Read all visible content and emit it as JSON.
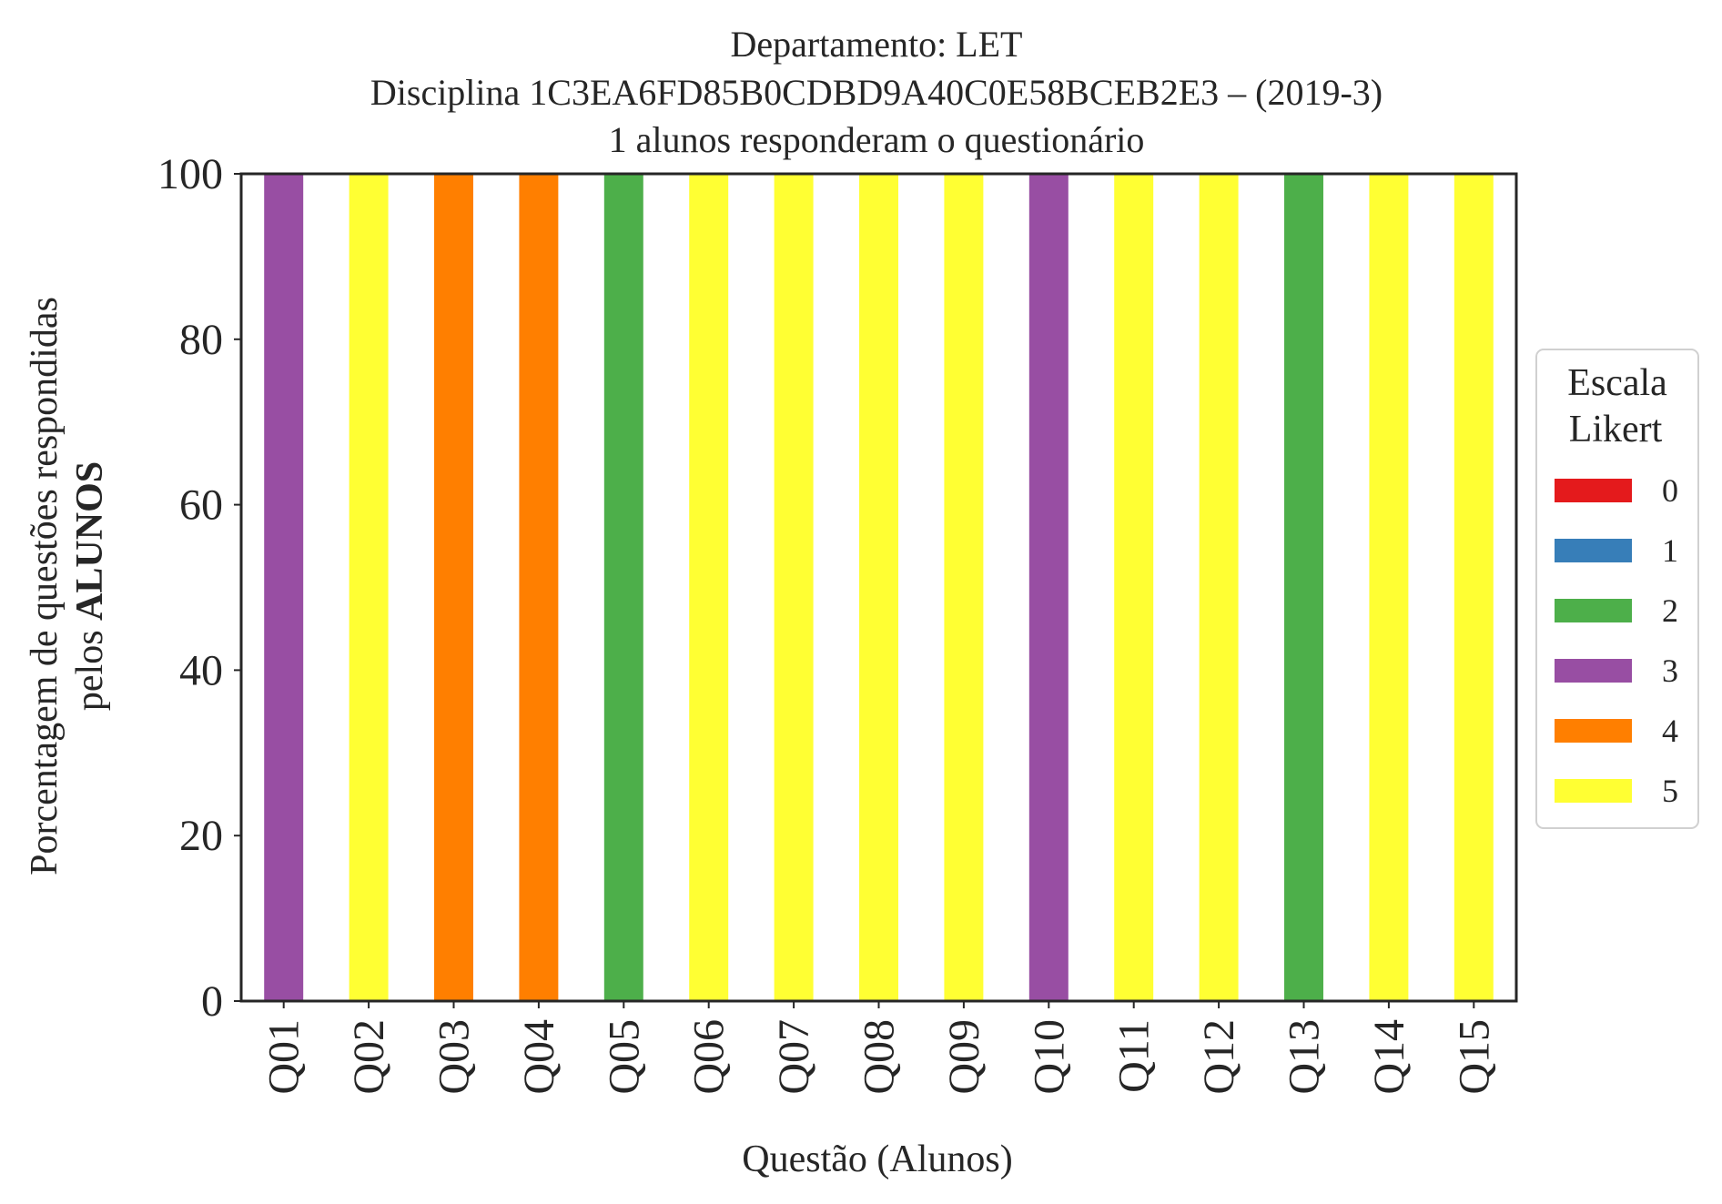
{
  "chart_data": {
    "type": "bar",
    "stacked": true,
    "title_lines": [
      "Departamento: LET",
      "Disciplina 1C3EA6FD85B0CDBD9A40C0E58BCEB2E3 – (2019-3)",
      "1 alunos responderam o questionário"
    ],
    "xlabel": "Questão (Alunos)",
    "ylabel_line1": "Porcentagem de questões respondidas",
    "ylabel_line2_prefix": "pelos ",
    "ylabel_line2_bold": "ALUNOS",
    "ylim": [
      0,
      100
    ],
    "yticks": [
      "0",
      "20",
      "40",
      "60",
      "80",
      "100"
    ],
    "categories": [
      "Q01",
      "Q02",
      "Q03",
      "Q04",
      "Q05",
      "Q06",
      "Q07",
      "Q08",
      "Q09",
      "Q10",
      "Q11",
      "Q12",
      "Q13",
      "Q14",
      "Q15"
    ],
    "series": [
      {
        "name": "0",
        "color": "#e41a1c",
        "values": [
          0,
          0,
          0,
          0,
          0,
          0,
          0,
          0,
          0,
          0,
          0,
          0,
          0,
          0,
          0
        ]
      },
      {
        "name": "1",
        "color": "#377eb8",
        "values": [
          0,
          0,
          0,
          0,
          0,
          0,
          0,
          0,
          0,
          0,
          0,
          0,
          0,
          0,
          0
        ]
      },
      {
        "name": "2",
        "color": "#4daf4a",
        "values": [
          0,
          0,
          0,
          0,
          100,
          0,
          0,
          0,
          0,
          0,
          0,
          0,
          100,
          0,
          0
        ]
      },
      {
        "name": "3",
        "color": "#984ea3",
        "values": [
          100,
          0,
          0,
          0,
          0,
          0,
          0,
          0,
          0,
          100,
          0,
          0,
          0,
          0,
          0
        ]
      },
      {
        "name": "4",
        "color": "#ff7f00",
        "values": [
          0,
          0,
          100,
          100,
          0,
          0,
          0,
          0,
          0,
          0,
          0,
          0,
          0,
          0,
          0
        ]
      },
      {
        "name": "5",
        "color": "#ffff33",
        "values": [
          0,
          100,
          0,
          0,
          0,
          100,
          100,
          100,
          100,
          0,
          100,
          100,
          0,
          100,
          100
        ]
      }
    ],
    "legend_title_lines": [
      "Escala",
      "Likert"
    ],
    "legend_position": "center-right-outside",
    "grid": false
  }
}
